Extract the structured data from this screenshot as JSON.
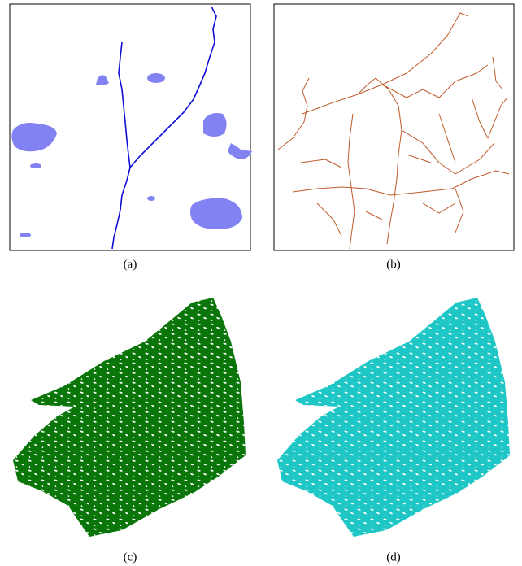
{
  "figure": {
    "panels": [
      {
        "caption": "(a)"
      },
      {
        "caption": "(b)"
      },
      {
        "caption": "(c)"
      },
      {
        "caption": "(d)"
      }
    ]
  }
}
